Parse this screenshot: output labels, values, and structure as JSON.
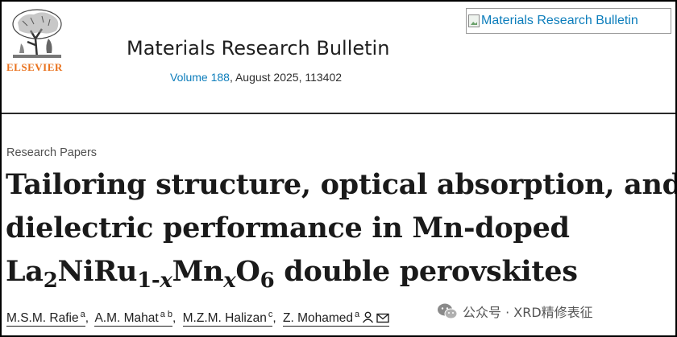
{
  "header": {
    "publisher_name": "ELSEVIER",
    "journal_title": "Materials Research Bulletin",
    "volume_link": "Volume 188",
    "issue_info": ", August 2025, 113402",
    "cover_alt": "Materials Research Bulletin"
  },
  "article": {
    "type": "Research Papers",
    "title_line1": "Tailoring structure, optical absorption, and",
    "title_line2": "dielectric performance in Mn-doped",
    "title_line3": {
      "la": "La",
      "la_sub": "2",
      "ni_ru": "NiRu",
      "ru_sub": "1-",
      "ru_sub_x": "x",
      "mn": "Mn",
      "mn_sub": "x",
      "o": "O",
      "o_sub": "6",
      "rest": " double perovskites"
    }
  },
  "authors": [
    {
      "name": "M.S.M. Rafie",
      "aff": "a"
    },
    {
      "name": "A.M. Mahat",
      "aff": "a b"
    },
    {
      "name": "M.Z.M. Halizan",
      "aff": "c"
    },
    {
      "name": "Z. Mohamed",
      "aff": "a"
    }
  ],
  "watermark": {
    "text": "公众号 · XRD精修表征"
  },
  "icons": {
    "logo": "elsevier-tree-logo",
    "person": "person-icon",
    "mail": "mail-icon",
    "wechat": "wechat-icon"
  }
}
